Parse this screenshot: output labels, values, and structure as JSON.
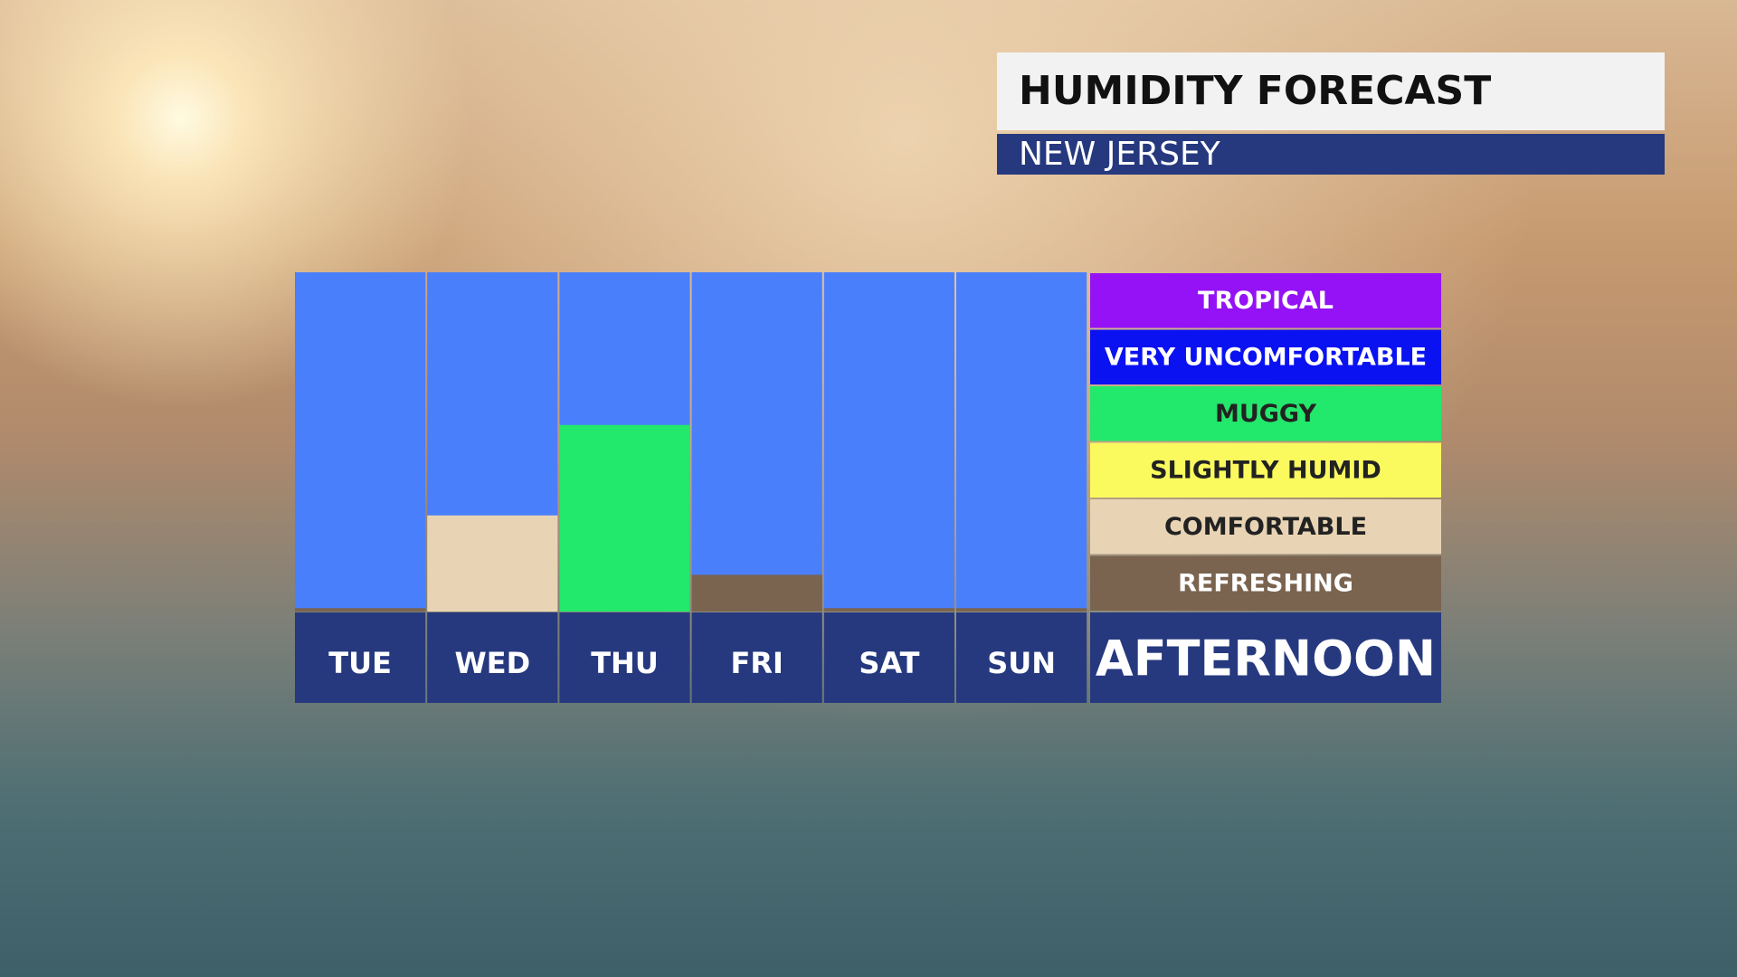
{
  "chart_data": {
    "type": "bar",
    "title": "HUMIDITY FORECAST",
    "subtitle": "NEW JERSEY",
    "period_label": "AFTERNOON",
    "categories": [
      "TUE",
      "WED",
      "THU",
      "FRI",
      "SAT",
      "SUN"
    ],
    "values": [
      0.06,
      1.7,
      3.3,
      0.65,
      0.06,
      0.06
    ],
    "colors": [
      "#7a6450",
      "#e8d4b4",
      "#22e86c",
      "#7a6450",
      "#7a6450",
      "#7a6450"
    ],
    "ylim": [
      0,
      6
    ],
    "levels": [
      {
        "name": "TROPICAL",
        "color": "#9412f5",
        "label_color": "#ffffff"
      },
      {
        "name": "VERY UNCOMFORTABLE",
        "color": "#0a12f2",
        "label_color": "#ffffff"
      },
      {
        "name": "MUGGY",
        "color": "#22e86c",
        "label_color": "#222222"
      },
      {
        "name": "SLIGHTLY HUMID",
        "color": "#fafa5e",
        "label_color": "#222222"
      },
      {
        "name": "COMFORTABLE",
        "color": "#e8d4b4",
        "label_color": "#222222"
      },
      {
        "name": "REFRESHING",
        "color": "#7a6450",
        "label_color": "#ffffff"
      }
    ]
  }
}
